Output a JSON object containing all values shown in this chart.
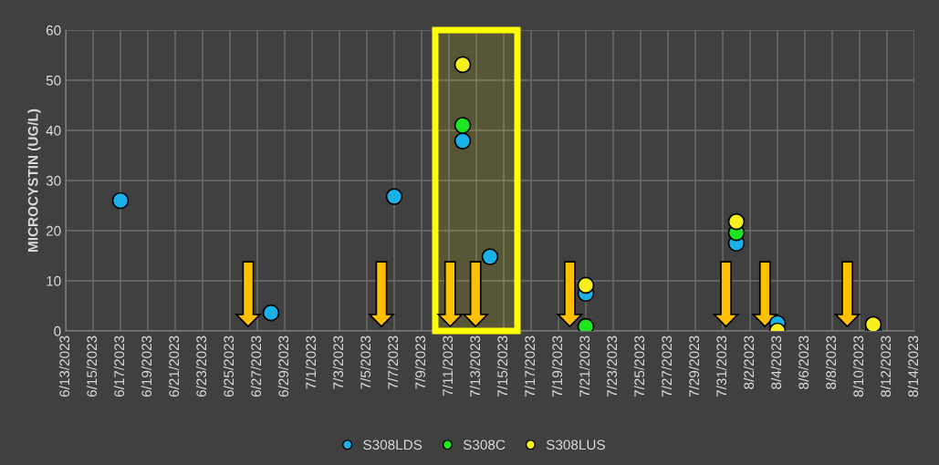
{
  "chart_data": {
    "type": "scatter",
    "ylabel": "MICROCYSTIN (UG/L)",
    "series": [
      {
        "name": "S308LDS",
        "color": "#1ab0e8",
        "x": [
          "2023-06-17",
          "2023-06-28",
          "2023-07-07",
          "2023-07-12",
          "2023-07-14",
          "2023-07-21",
          "2023-08-01",
          "2023-08-04",
          "2023-08-11"
        ],
        "values": [
          26,
          3.6,
          26.8,
          37.9,
          14.8,
          7.5,
          17.5,
          1.5,
          0
        ]
      },
      {
        "name": "S308C",
        "color": "#1ee61e",
        "x": [
          "2023-07-12",
          "2023-07-21",
          "2023-08-01"
        ],
        "values": [
          41,
          0.9,
          19.6
        ]
      },
      {
        "name": "S308LUS",
        "color": "#f5f01e",
        "x": [
          "2023-07-12",
          "2023-07-21",
          "2023-08-01",
          "2023-08-04",
          "2023-08-11"
        ],
        "values": [
          53.1,
          9.1,
          21.8,
          0,
          1.3
        ]
      }
    ],
    "xlim": [
      "2023-06-13",
      "2023-08-14"
    ],
    "xticks": [
      {
        "value": "2023-06-13",
        "label": "6/13/2023"
      },
      {
        "value": "2023-06-15",
        "label": "6/15/2023"
      },
      {
        "value": "2023-06-17",
        "label": "6/17/2023"
      },
      {
        "value": "2023-06-19",
        "label": "6/19/2023"
      },
      {
        "value": "2023-06-21",
        "label": "6/21/2023"
      },
      {
        "value": "2023-06-23",
        "label": "6/23/2023"
      },
      {
        "value": "2023-06-25",
        "label": "6/25/2023"
      },
      {
        "value": "2023-06-27",
        "label": "6/27/2023"
      },
      {
        "value": "2023-06-29",
        "label": "6/29/2023"
      },
      {
        "value": "2023-07-01",
        "label": "7/1/2023"
      },
      {
        "value": "2023-07-03",
        "label": "7/3/2023"
      },
      {
        "value": "2023-07-05",
        "label": "7/5/2023"
      },
      {
        "value": "2023-07-07",
        "label": "7/7/2023"
      },
      {
        "value": "2023-07-09",
        "label": "7/9/2023"
      },
      {
        "value": "2023-07-11",
        "label": "7/11/2023"
      },
      {
        "value": "2023-07-13",
        "label": "7/13/2023"
      },
      {
        "value": "2023-07-15",
        "label": "7/15/2023"
      },
      {
        "value": "2023-07-17",
        "label": "7/17/2023"
      },
      {
        "value": "2023-07-19",
        "label": "7/19/2023"
      },
      {
        "value": "2023-07-21",
        "label": "7/21/2023"
      },
      {
        "value": "2023-07-23",
        "label": "7/23/2023"
      },
      {
        "value": "2023-07-25",
        "label": "7/25/2023"
      },
      {
        "value": "2023-07-27",
        "label": "7/27/2023"
      },
      {
        "value": "2023-07-29",
        "label": "7/29/2023"
      },
      {
        "value": "2023-07-31",
        "label": "7/31/2023"
      },
      {
        "value": "2023-08-02",
        "label": "8/2/2023"
      },
      {
        "value": "2023-08-04",
        "label": "8/4/2023"
      },
      {
        "value": "2023-08-06",
        "label": "8/6/2023"
      },
      {
        "value": "2023-08-08",
        "label": "8/8/2023"
      },
      {
        "value": "2023-08-10",
        "label": "8/10/2023"
      },
      {
        "value": "2023-08-12",
        "label": "8/12/2023"
      },
      {
        "value": "2023-08-14",
        "label": "8/14/2023"
      }
    ],
    "ylim": [
      0,
      60
    ],
    "yticks": [
      0,
      10,
      20,
      30,
      40,
      50,
      60
    ],
    "bands": [
      {
        "axis": "x",
        "from": "2023-07-10",
        "to": "2023-07-16",
        "color": "#ffff00"
      }
    ],
    "grid": true,
    "legend": "bottom",
    "marker": "circle"
  }
}
